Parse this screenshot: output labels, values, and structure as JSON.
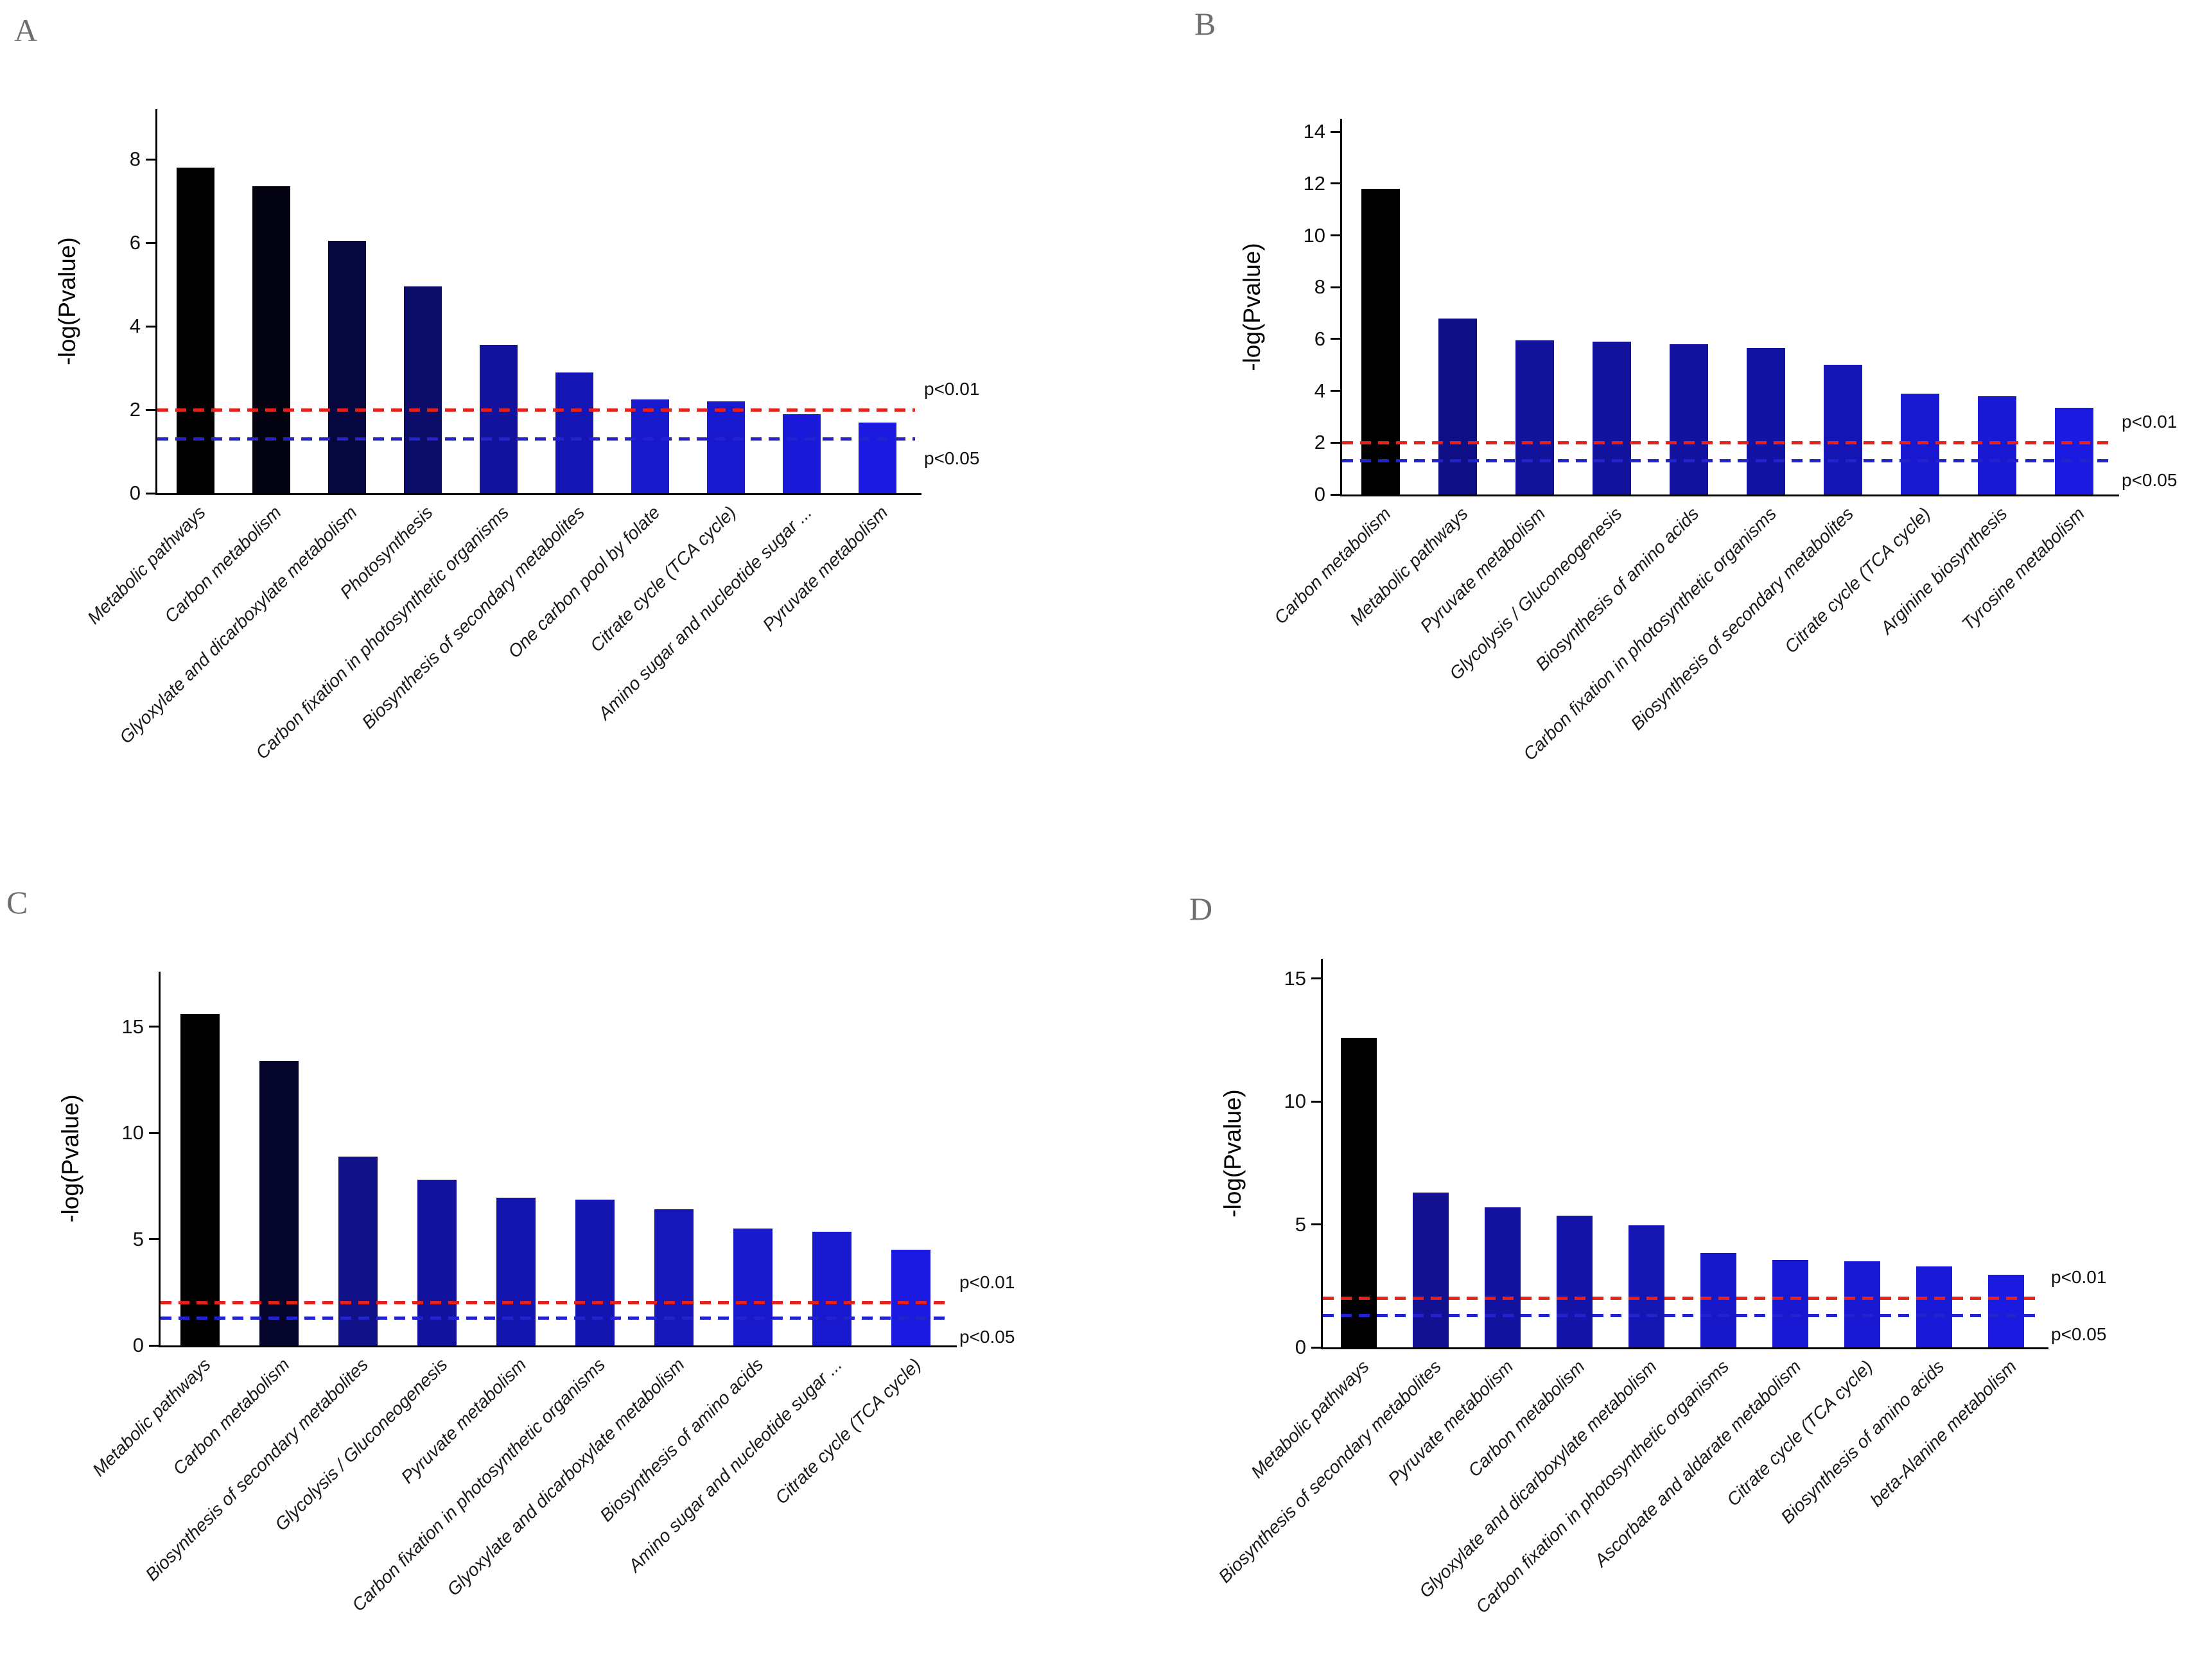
{
  "figure": {
    "ylabel": "-log(Pvalue)",
    "significance_lines": {
      "p01": {
        "label": "p<0.01",
        "value": 2.0,
        "color": "#e8201c"
      },
      "p05": {
        "label": "p<0.05",
        "value": 1.3,
        "color": "#2323cd"
      }
    },
    "bar_color_gradient": [
      "#000000",
      "#1a1ae0"
    ]
  },
  "chart_data": [
    {
      "type": "bar",
      "panel": "A",
      "title": "",
      "xlabel": "",
      "ylabel": "-log(Pvalue)",
      "yticks": [
        0,
        2,
        4,
        6,
        8
      ],
      "ylim": [
        0,
        9.2
      ],
      "grid": false,
      "legend": "none",
      "categories": [
        "Metabolic pathways",
        "Carbon metabolism",
        "Glyoxylate and dicarboxylate metabolism",
        "Photosynthesis",
        "Carbon fixation in photosynthetic organisms",
        "Biosynthesis of secondary metabolites",
        "One carbon pool by folate",
        "Citrate cycle (TCA cycle)",
        "Amino sugar and nucleotide sugar ...",
        "Pyruvate metabolism"
      ],
      "values": [
        7.8,
        7.35,
        6.05,
        4.95,
        3.55,
        2.9,
        2.25,
        2.2,
        1.9,
        1.7
      ],
      "thresholds": [
        {
          "label": "p<0.01",
          "value": 2.0,
          "color": "#e8201c"
        },
        {
          "label": "p<0.05",
          "value": 1.3,
          "color": "#2323cd"
        }
      ]
    },
    {
      "type": "bar",
      "panel": "B",
      "title": "",
      "xlabel": "",
      "ylabel": "-log(Pvalue)",
      "yticks": [
        0,
        2,
        4,
        6,
        8,
        10,
        12,
        14
      ],
      "ylim": [
        0,
        14.5
      ],
      "grid": false,
      "legend": "none",
      "categories": [
        "Carbon metabolism",
        "Metabolic pathways",
        "Pyruvate metabolism",
        "Glycolysis / Gluconeogenesis",
        "Biosynthesis of amino acids",
        "Carbon fixation in photosynthetic organisms",
        "Biosynthesis of secondary metabolites",
        "Citrate cycle (TCA cycle)",
        "Arginine biosynthesis",
        "Tyrosine metabolism"
      ],
      "values": [
        11.8,
        6.8,
        5.95,
        5.9,
        5.8,
        5.65,
        5.0,
        3.9,
        3.8,
        3.35
      ],
      "thresholds": [
        {
          "label": "p<0.01",
          "value": 2.0,
          "color": "#e8201c"
        },
        {
          "label": "p<0.05",
          "value": 1.3,
          "color": "#2323cd"
        }
      ]
    },
    {
      "type": "bar",
      "panel": "C",
      "title": "",
      "xlabel": "",
      "ylabel": "-log(Pvalue)",
      "yticks": [
        0,
        5,
        10,
        15
      ],
      "ylim": [
        0,
        17.6
      ],
      "grid": false,
      "legend": "none",
      "categories": [
        "Metabolic pathways",
        "Carbon metabolism",
        "Biosynthesis of secondary metabolites",
        "Glycolysis / Gluconeogenesis",
        "Pyruvate metabolism",
        "Carbon fixation in photosynthetic organisms",
        "Glyoxylate and dicarboxylate metabolism",
        "Biosynthesis of amino acids",
        "Amino sugar and nucleotide sugar ...",
        "Citrate cycle (TCA cycle)"
      ],
      "values": [
        15.6,
        13.4,
        8.9,
        7.8,
        6.95,
        6.85,
        6.4,
        5.5,
        5.35,
        4.5
      ],
      "thresholds": [
        {
          "label": "p<0.01",
          "value": 2.0,
          "color": "#e8201c"
        },
        {
          "label": "p<0.05",
          "value": 1.3,
          "color": "#2323cd"
        }
      ]
    },
    {
      "type": "bar",
      "panel": "D",
      "title": "",
      "xlabel": "",
      "ylabel": "-log(Pvalue)",
      "yticks": [
        0,
        5,
        10,
        15
      ],
      "ylim": [
        0,
        15.8
      ],
      "grid": false,
      "legend": "none",
      "categories": [
        "Metabolic pathways",
        "Biosynthesis of secondary metabolites",
        "Pyruvate metabolism",
        "Carbon metabolism",
        "Glyoxylate and dicarboxylate metabolism",
        "Carbon fixation in photosynthetic organisms",
        "Ascorbate and aldarate metabolism",
        "Citrate cycle (TCA cycle)",
        "Biosynthesis of amino acids",
        "beta-Alanine metabolism"
      ],
      "values": [
        12.6,
        6.3,
        5.7,
        5.35,
        4.95,
        3.85,
        3.55,
        3.5,
        3.3,
        2.95
      ],
      "thresholds": [
        {
          "label": "p<0.01",
          "value": 2.0,
          "color": "#e8201c"
        },
        {
          "label": "p<0.05",
          "value": 1.3,
          "color": "#2323cd"
        }
      ]
    }
  ]
}
